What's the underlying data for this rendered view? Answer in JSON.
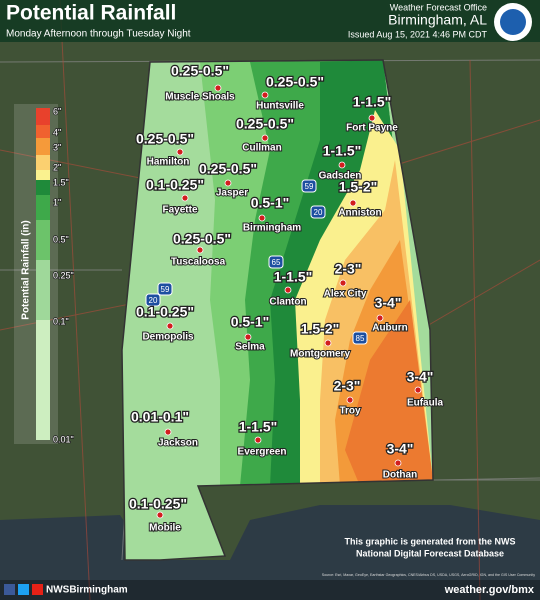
{
  "header": {
    "title": "Potential Rainfall",
    "subtitle": "Monday Afternoon through Tuesday Night",
    "office": "Weather Forecast Office",
    "location": "Birmingham, AL",
    "issued": "Issued Aug 15, 2021 4:46 PM CDT"
  },
  "legend": {
    "title": "Potential Rainfall (in)",
    "labels": [
      "6\"",
      "4\"",
      "3\"",
      "2\"",
      "1.5\"",
      "1\"",
      "0.5\"",
      "0.25\"",
      "0.1\"",
      "0.01\""
    ]
  },
  "cities": [
    {
      "name": "Muscle Shoals",
      "amount": "0.25-0.5\""
    },
    {
      "name": "Huntsville",
      "amount": "0.25-0.5\""
    },
    {
      "name": "Fort Payne",
      "amount": "1-1.5\""
    },
    {
      "name": "Hamilton",
      "amount": "0.25-0.5\""
    },
    {
      "name": "Cullman",
      "amount": "0.25-0.5\""
    },
    {
      "name": "Gadsden",
      "amount": "1-1.5\""
    },
    {
      "name": "Jasper",
      "amount": "0.25-0.5\""
    },
    {
      "name": "Fayette",
      "amount": "0.1-0.25\""
    },
    {
      "name": "Anniston",
      "amount": "1.5-2\""
    },
    {
      "name": "Birmingham",
      "amount": "0.5-1\""
    },
    {
      "name": "Tuscaloosa",
      "amount": "0.25-0.5\""
    },
    {
      "name": "Alex City",
      "amount": "2-3\""
    },
    {
      "name": "Clanton",
      "amount": "1-1.5\""
    },
    {
      "name": "Auburn",
      "amount": "3-4\""
    },
    {
      "name": "Demopolis",
      "amount": "0.1-0.25\""
    },
    {
      "name": "Selma",
      "amount": "0.5-1\""
    },
    {
      "name": "Montgomery",
      "amount": "1.5-2\""
    },
    {
      "name": "Troy",
      "amount": "2-3\""
    },
    {
      "name": "Eufaula",
      "amount": "3-4\""
    },
    {
      "name": "Jackson",
      "amount": "0.01-0.1\""
    },
    {
      "name": "Evergreen",
      "amount": "1-1.5\""
    },
    {
      "name": "Dothan",
      "amount": "3-4\""
    },
    {
      "name": "Mobile",
      "amount": "0.1-0.25\""
    }
  ],
  "interstates": [
    "59",
    "20",
    "65",
    "20",
    "59",
    "85"
  ],
  "footer": {
    "social": "NWSBirmingham",
    "website": "weather.gov/bmx",
    "note_line1": "This graphic is generated from the NWS",
    "note_line2": "National Digital Forecast Database",
    "attribution": "Source: Esri, Maxar, GeoEye, Earthstar Geographics, CNES/Airbus DS, USDA, USGS, AeroGRID, IGN, and the GIS User Community"
  }
}
